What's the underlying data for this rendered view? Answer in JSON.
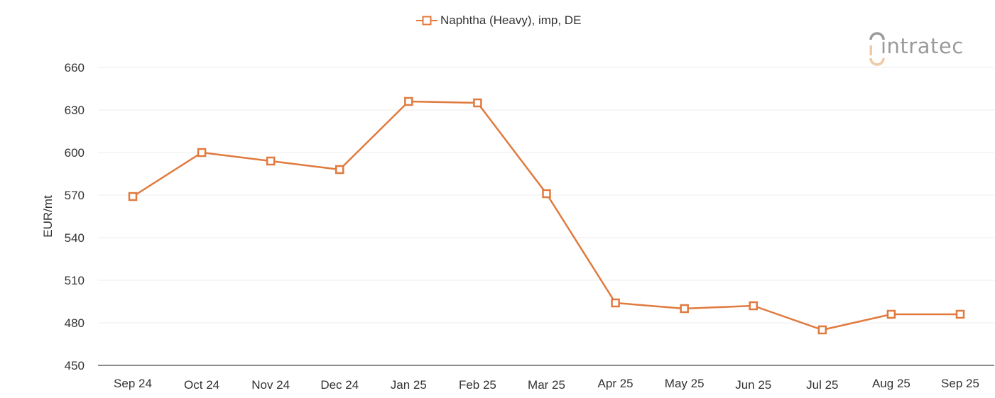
{
  "legend": {
    "label": "Naphtha (Heavy), imp, DE",
    "color": "#e07a3f"
  },
  "logo": {
    "text": "intratec"
  },
  "colors": {
    "series": "#e07a3f",
    "grid": "#ececec",
    "axis": "#666666",
    "text": "#333333",
    "logo_gray": "#9a9a9a",
    "logo_accent": "#f0c9a6"
  },
  "chart_data": {
    "type": "line",
    "title": "",
    "legend": [
      "Naphtha (Heavy), imp, DE"
    ],
    "legend_position": "top",
    "xlabel": "",
    "ylabel": "EUR/mt",
    "ylim": [
      450,
      660
    ],
    "yticks": [
      450,
      480,
      510,
      540,
      570,
      600,
      630,
      660
    ],
    "grid": true,
    "categories": [
      "Sep 24",
      "Oct 24",
      "Nov 24",
      "Dec 24",
      "Jan 25",
      "Feb 25",
      "Mar 25",
      "Apr 25",
      "May 25",
      "Jun 25",
      "Jul 25",
      "Aug 25",
      "Sep 25"
    ],
    "series": [
      {
        "name": "Naphtha (Heavy), imp, DE",
        "marker": "hollow-square",
        "values": [
          569,
          600,
          594,
          588,
          636,
          635,
          571,
          494,
          490,
          492,
          475,
          486,
          486
        ]
      }
    ]
  }
}
